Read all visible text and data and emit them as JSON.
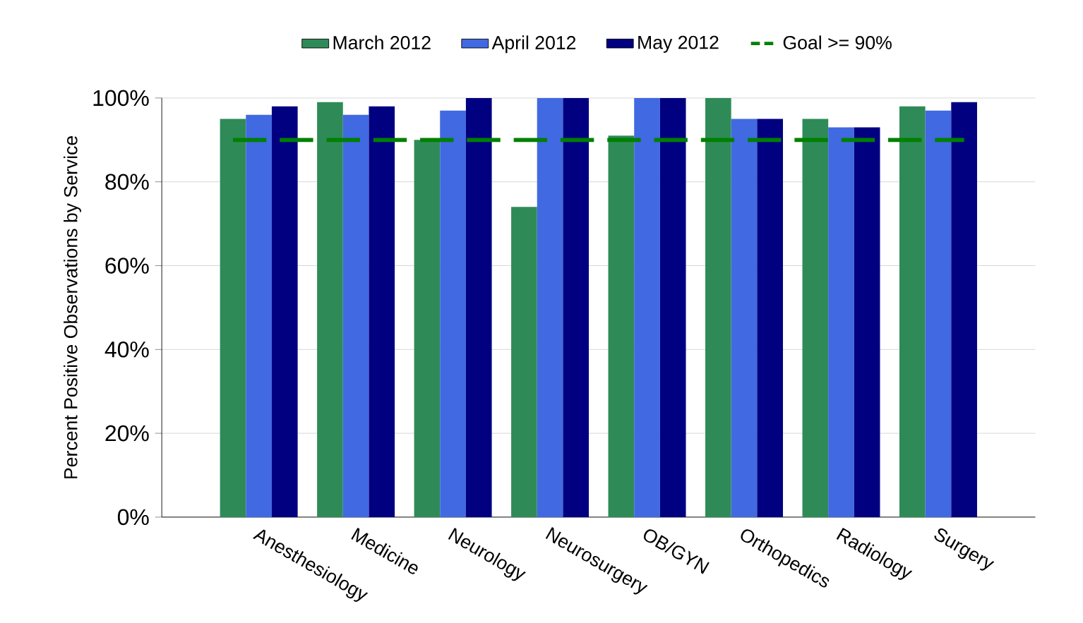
{
  "chart_data": {
    "type": "bar",
    "ylabel": "Percent Positive Observations by Service",
    "categories": [
      "Anesthesiology",
      "Medicine",
      "Neurology",
      "Neurosurgery",
      "OB/GYN",
      "Orthopedics",
      "Radiology",
      "Surgery"
    ],
    "series": [
      {
        "name": "March  2012",
        "color": "#2e8b57",
        "values": [
          95,
          99,
          90,
          74,
          91,
          100,
          95,
          98
        ]
      },
      {
        "name": "April  2012",
        "color": "#4169e1",
        "values": [
          96,
          96,
          97,
          100,
          100,
          95,
          93,
          97
        ]
      },
      {
        "name": "May  2012",
        "color": "#000080",
        "values": [
          98,
          98,
          100,
          100,
          100,
          95,
          93,
          99
        ]
      }
    ],
    "ylim": [
      0,
      100
    ],
    "yticks": [
      {
        "value": 0,
        "label": "0%"
      },
      {
        "value": 20,
        "label": "20%"
      },
      {
        "value": 40,
        "label": "40%"
      },
      {
        "value": 60,
        "label": "60%"
      },
      {
        "value": 80,
        "label": "80%"
      },
      {
        "value": 100,
        "label": "100%"
      }
    ],
    "ref_lines": [
      {
        "axis": "y",
        "value": 90,
        "label": "Goal >= 90%",
        "color": "#008000",
        "line_style": "dashed"
      }
    ],
    "grid": "y",
    "legend": "top"
  }
}
